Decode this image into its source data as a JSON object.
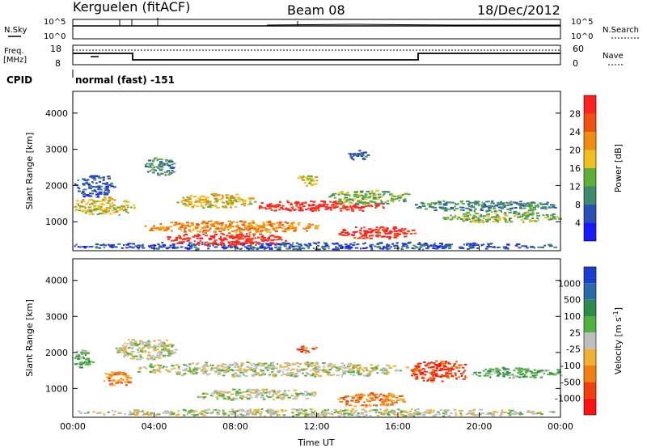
{
  "header": {
    "station": "Kerguelen (fitACF)",
    "beam": "Beam 08",
    "date": "18/Dec/2012"
  },
  "top_panels": {
    "nsky_label": "N.Sky",
    "nsky_ticks": [
      "10^5",
      "10^0"
    ],
    "nsearch_label": "N.Search",
    "nsearch_ticks": [
      "10^5",
      "10^0"
    ],
    "freq_label_line1": "Freq.",
    "freq_label_line2": "[MHz]",
    "freq_ticks": [
      "18",
      "8"
    ],
    "nave_label": "Nave",
    "nave_ticks": [
      "60",
      "0"
    ],
    "cpid_label": "CPID",
    "cpid_value": "normal (fast) -151"
  },
  "chart_data": [
    {
      "type": "heatmap",
      "panel": "power",
      "ylabel": "Slant Range [km]",
      "ylim": [
        200,
        4600
      ],
      "yticks": [
        1000,
        2000,
        3000,
        4000
      ],
      "x_ticks": [
        "00:00",
        "04:00",
        "08:00",
        "12:00",
        "16:00",
        "20:00",
        "00:00"
      ],
      "x_range_hours": [
        0,
        24
      ],
      "colorbar": {
        "label": "Power [dB]",
        "ticks": [
          "4",
          "8",
          "12",
          "16",
          "20",
          "24",
          "28"
        ],
        "colors": [
          "#1a1aff",
          "#2a4fb8",
          "#3e8a6b",
          "#5fae3a",
          "#f0c020",
          "#f08c10",
          "#f05010",
          "#ff2020"
        ]
      },
      "regions": [
        {
          "t0": 0.0,
          "t1": 24.0,
          "r0": 250,
          "r1": 450,
          "level": 1
        },
        {
          "t0": 4.5,
          "t1": 10.5,
          "r0": 350,
          "r1": 700,
          "level": 7
        },
        {
          "t0": 3.5,
          "t1": 12.0,
          "r0": 700,
          "r1": 1050,
          "level": 5
        },
        {
          "t0": 13.0,
          "t1": 16.8,
          "r0": 550,
          "r1": 900,
          "level": 7
        },
        {
          "t0": 9.0,
          "t1": 15.5,
          "r0": 1300,
          "r1": 1600,
          "level": 7
        },
        {
          "t0": 0.0,
          "t1": 3.0,
          "r0": 1200,
          "r1": 1700,
          "level": 4
        },
        {
          "t0": 0.0,
          "t1": 2.0,
          "r0": 1700,
          "r1": 2300,
          "level": 1
        },
        {
          "t0": 5.0,
          "t1": 9.0,
          "r0": 1400,
          "r1": 1800,
          "level": 4
        },
        {
          "t0": 12.5,
          "t1": 16.5,
          "r0": 1500,
          "r1": 1900,
          "level": 3
        },
        {
          "t0": 11.0,
          "t1": 12.0,
          "r0": 2000,
          "r1": 2300,
          "level": 4
        },
        {
          "t0": 16.5,
          "t1": 24.0,
          "r0": 1300,
          "r1": 1600,
          "level": 2
        },
        {
          "t0": 18.0,
          "t1": 24.0,
          "r0": 1000,
          "r1": 1300,
          "level": 3
        },
        {
          "t0": 3.5,
          "t1": 5.0,
          "r0": 2300,
          "r1": 2800,
          "level": 2
        },
        {
          "t0": 13.5,
          "t1": 14.5,
          "r0": 2700,
          "r1": 3000,
          "level": 1
        }
      ]
    },
    {
      "type": "heatmap",
      "panel": "velocity",
      "ylabel": "Slant Range [km]",
      "ylim": [
        200,
        4600
      ],
      "yticks": [
        1000,
        2000,
        3000,
        4000
      ],
      "x_ticks": [
        "00:00",
        "04:00",
        "08:00",
        "12:00",
        "16:00",
        "20:00",
        "00:00"
      ],
      "xlabel": "Time UT",
      "x_range_hours": [
        0,
        24
      ],
      "colorbar": {
        "label": "Velocity [m s-1]",
        "label_main": "Velocity [m s",
        "label_sup": "-1",
        "label_end": "]",
        "ticks": [
          "1000",
          "500",
          "100",
          "25",
          "-25",
          "-100",
          "-500",
          "-1000"
        ],
        "colors": [
          "#1a3fd0",
          "#2a6aa8",
          "#2d8a4a",
          "#50b040",
          "#bebebe",
          "#f0b030",
          "#f08010",
          "#f04010",
          "#ff1010"
        ]
      },
      "regions": [
        {
          "t0": 3.0,
          "t1": 16.5,
          "r0": 1350,
          "r1": 1750,
          "level": 4
        },
        {
          "t0": 6.0,
          "t1": 12.0,
          "r0": 700,
          "r1": 1000,
          "level": 4
        },
        {
          "t0": 2.0,
          "t1": 5.0,
          "r0": 1800,
          "r1": 2400,
          "level": 4
        },
        {
          "t0": 0.0,
          "t1": 1.0,
          "r0": 1600,
          "r1": 2100,
          "level": 3
        },
        {
          "t0": 1.5,
          "t1": 3.0,
          "r0": 1100,
          "r1": 1500,
          "level": 6
        },
        {
          "t0": 13.0,
          "t1": 16.5,
          "r0": 500,
          "r1": 900,
          "level": 6
        },
        {
          "t0": 16.5,
          "t1": 19.5,
          "r0": 1200,
          "r1": 1800,
          "level": 7
        },
        {
          "t0": 19.5,
          "t1": 24.0,
          "r0": 1300,
          "r1": 1600,
          "level": 3
        },
        {
          "t0": 0.0,
          "t1": 24.0,
          "r0": 250,
          "r1": 450,
          "level": 4
        },
        {
          "t0": 11.0,
          "t1": 12.0,
          "r0": 2000,
          "r1": 2200,
          "level": 7
        }
      ]
    }
  ]
}
